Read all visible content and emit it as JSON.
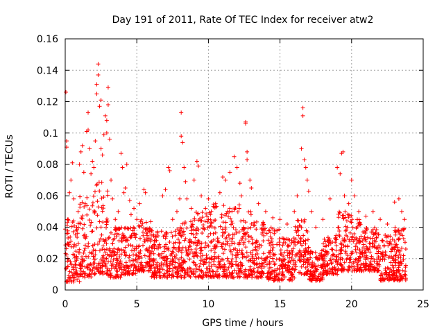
{
  "chart_data": {
    "type": "scatter",
    "title": "Day 191 of 2011, Rate Of TEC Index for receiver atw2",
    "xlabel": "GPS time / hours",
    "ylabel": "ROTI / TECUs",
    "xlim": [
      0,
      25
    ],
    "ylim": [
      0,
      0.16
    ],
    "x_ticks": [
      "0",
      "5",
      "10",
      "15",
      "20",
      "25"
    ],
    "y_ticks": [
      "0",
      "0.02",
      "0.04",
      "0.06",
      "0.08",
      "0.1",
      "0.12",
      "0.14",
      "0.16"
    ],
    "grid": true,
    "marker": "+",
    "color": "#ff0000",
    "series": [
      {
        "points": [
          [
            0.05,
            0.126
          ],
          [
            0.1,
            0.095
          ],
          [
            0.1,
            0.091
          ],
          [
            0.2,
            0.045
          ],
          [
            0.3,
            0.062
          ],
          [
            0.4,
            0.07
          ],
          [
            0.5,
            0.081
          ],
          [
            0.6,
            0.058
          ],
          [
            0.8,
            0.04
          ],
          [
            0.9,
            0.05
          ],
          [
            1.0,
            0.08
          ],
          [
            1.1,
            0.088
          ],
          [
            1.2,
            0.092
          ],
          [
            1.3,
            0.075
          ],
          [
            1.4,
            0.055
          ],
          [
            1.5,
            0.101
          ],
          [
            1.6,
            0.102
          ],
          [
            1.6,
            0.113
          ],
          [
            1.7,
            0.09
          ],
          [
            1.8,
            0.074
          ],
          [
            1.9,
            0.082
          ],
          [
            2.0,
            0.078
          ],
          [
            2.1,
            0.095
          ],
          [
            2.2,
            0.131
          ],
          [
            2.2,
            0.125
          ],
          [
            2.3,
            0.144
          ],
          [
            2.3,
            0.137
          ],
          [
            2.4,
            0.117
          ],
          [
            2.5,
            0.121
          ],
          [
            2.5,
            0.09
          ],
          [
            2.6,
            0.086
          ],
          [
            2.7,
            0.099
          ],
          [
            2.8,
            0.111
          ],
          [
            2.9,
            0.108
          ],
          [
            2.9,
            0.1
          ],
          [
            3.0,
            0.129
          ],
          [
            3.0,
            0.118
          ],
          [
            3.1,
            0.096
          ],
          [
            3.2,
            0.07
          ],
          [
            3.3,
            0.058
          ],
          [
            3.5,
            0.045
          ],
          [
            3.7,
            0.05
          ],
          [
            3.9,
            0.087
          ],
          [
            4.0,
            0.078
          ],
          [
            4.1,
            0.062
          ],
          [
            4.2,
            0.065
          ],
          [
            4.3,
            0.08
          ],
          [
            4.5,
            0.057
          ],
          [
            4.6,
            0.048
          ],
          [
            4.8,
            0.052
          ],
          [
            5.0,
            0.045
          ],
          [
            5.2,
            0.055
          ],
          [
            5.3,
            0.041
          ],
          [
            5.5,
            0.064
          ],
          [
            5.6,
            0.062
          ],
          [
            5.8,
            0.038
          ],
          [
            6.0,
            0.035
          ],
          [
            6.2,
            0.029
          ],
          [
            6.5,
            0.028
          ],
          [
            6.8,
            0.06
          ],
          [
            7.0,
            0.064
          ],
          [
            7.2,
            0.078
          ],
          [
            7.3,
            0.076
          ],
          [
            7.5,
            0.045
          ],
          [
            7.8,
            0.05
          ],
          [
            8.0,
            0.058
          ],
          [
            8.1,
            0.098
          ],
          [
            8.1,
            0.113
          ],
          [
            8.2,
            0.094
          ],
          [
            8.3,
            0.078
          ],
          [
            8.4,
            0.069
          ],
          [
            8.5,
            0.058
          ],
          [
            8.8,
            0.052
          ],
          [
            9.0,
            0.07
          ],
          [
            9.2,
            0.082
          ],
          [
            9.3,
            0.079
          ],
          [
            9.5,
            0.06
          ],
          [
            9.8,
            0.052
          ],
          [
            10.0,
            0.058
          ],
          [
            10.2,
            0.05
          ],
          [
            10.5,
            0.055
          ],
          [
            10.8,
            0.062
          ],
          [
            11.0,
            0.072
          ],
          [
            11.2,
            0.07
          ],
          [
            11.5,
            0.075
          ],
          [
            11.8,
            0.085
          ],
          [
            12.0,
            0.078
          ],
          [
            12.2,
            0.068
          ],
          [
            12.3,
            0.06
          ],
          [
            12.6,
            0.107
          ],
          [
            12.6,
            0.106
          ],
          [
            12.7,
            0.088
          ],
          [
            12.7,
            0.083
          ],
          [
            12.9,
            0.07
          ],
          [
            13.0,
            0.065
          ],
          [
            13.5,
            0.055
          ],
          [
            14.0,
            0.05
          ],
          [
            14.5,
            0.046
          ],
          [
            15.0,
            0.045
          ],
          [
            15.5,
            0.042
          ],
          [
            16.0,
            0.05
          ],
          [
            16.2,
            0.06
          ],
          [
            16.5,
            0.09
          ],
          [
            16.6,
            0.116
          ],
          [
            16.6,
            0.111
          ],
          [
            16.7,
            0.083
          ],
          [
            16.8,
            0.078
          ],
          [
            16.9,
            0.07
          ],
          [
            17.0,
            0.063
          ],
          [
            17.2,
            0.05
          ],
          [
            17.5,
            0.04
          ],
          [
            18.0,
            0.045
          ],
          [
            18.5,
            0.058
          ],
          [
            19.0,
            0.078
          ],
          [
            19.2,
            0.074
          ],
          [
            19.3,
            0.087
          ],
          [
            19.4,
            0.088
          ],
          [
            19.5,
            0.06
          ],
          [
            19.8,
            0.055
          ],
          [
            20.0,
            0.07
          ],
          [
            20.2,
            0.06
          ],
          [
            20.5,
            0.05
          ],
          [
            21.0,
            0.047
          ],
          [
            21.5,
            0.05
          ],
          [
            22.0,
            0.045
          ],
          [
            22.5,
            0.042
          ],
          [
            23.0,
            0.056
          ],
          [
            23.3,
            0.058
          ],
          [
            23.5,
            0.05
          ],
          [
            23.7,
            0.045
          ]
        ]
      }
    ],
    "band": {
      "note": "dense cloud of points, y range per hour segment",
      "segments": [
        [
          0,
          1,
          0.005,
          0.045
        ],
        [
          1,
          2,
          0.008,
          0.06
        ],
        [
          2,
          3,
          0.01,
          0.07
        ],
        [
          3,
          4,
          0.008,
          0.04
        ],
        [
          4,
          5,
          0.01,
          0.04
        ],
        [
          5,
          6,
          0.012,
          0.045
        ],
        [
          6,
          7,
          0.008,
          0.038
        ],
        [
          7,
          8,
          0.008,
          0.04
        ],
        [
          8,
          9,
          0.008,
          0.045
        ],
        [
          9,
          10,
          0.008,
          0.05
        ],
        [
          10,
          11,
          0.008,
          0.055
        ],
        [
          11,
          12,
          0.008,
          0.055
        ],
        [
          12,
          13,
          0.008,
          0.055
        ],
        [
          13,
          14,
          0.008,
          0.045
        ],
        [
          14,
          15,
          0.006,
          0.04
        ],
        [
          15,
          16,
          0.006,
          0.035
        ],
        [
          16,
          17,
          0.01,
          0.045
        ],
        [
          17,
          18,
          0.006,
          0.025
        ],
        [
          18,
          19,
          0.01,
          0.035
        ],
        [
          19,
          20,
          0.012,
          0.05
        ],
        [
          20,
          21,
          0.012,
          0.045
        ],
        [
          21,
          22,
          0.012,
          0.04
        ],
        [
          22,
          23,
          0.006,
          0.035
        ],
        [
          23,
          23.8,
          0.006,
          0.04
        ]
      ]
    }
  }
}
